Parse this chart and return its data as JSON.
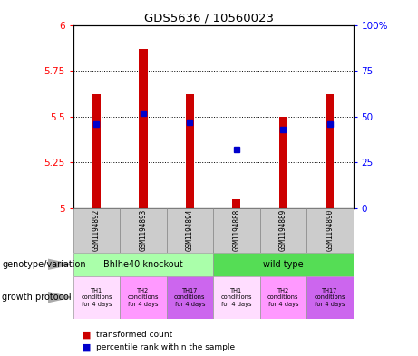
{
  "title": "GDS5636 / 10560023",
  "samples": [
    "GSM1194892",
    "GSM1194893",
    "GSM1194894",
    "GSM1194888",
    "GSM1194889",
    "GSM1194890"
  ],
  "bar_heights": [
    5.62,
    5.87,
    5.62,
    5.05,
    5.5,
    5.62
  ],
  "bar_base": 5.0,
  "percentile_values": [
    46,
    52,
    47,
    32,
    43,
    46
  ],
  "ylim_left": [
    5.0,
    6.0
  ],
  "ylim_right": [
    0,
    100
  ],
  "yticks_left": [
    5.0,
    5.25,
    5.5,
    5.75,
    6.0
  ],
  "yticks_right": [
    0,
    25,
    50,
    75,
    100
  ],
  "ytick_labels_left": [
    "5",
    "5.25",
    "5.5",
    "5.75",
    "6"
  ],
  "ytick_labels_right": [
    "0",
    "25",
    "50",
    "75",
    "100%"
  ],
  "bar_color": "#cc0000",
  "percentile_color": "#0000cc",
  "bar_width": 0.18,
  "genotype_ko_color": "#aaffaa",
  "genotype_wt_color": "#55dd55",
  "growth_colors": [
    "#ffddff",
    "#ff99ff",
    "#cc66ee",
    "#ffddff",
    "#ff99ff",
    "#cc66ee"
  ],
  "growth_protocol_labels": [
    "TH1\nconditions\nfor 4 days",
    "TH2\nconditions\nfor 4 days",
    "TH17\nconditions\nfor 4 days",
    "TH1\nconditions\nfor 4 days",
    "TH2\nconditions\nfor 4 days",
    "TH17\nconditions\nfor 4 days"
  ],
  "annotation_genotype": "genotype/variation",
  "annotation_growth": "growth protocol",
  "legend_bar_label": "transformed count",
  "legend_pct_label": "percentile rank within the sample"
}
